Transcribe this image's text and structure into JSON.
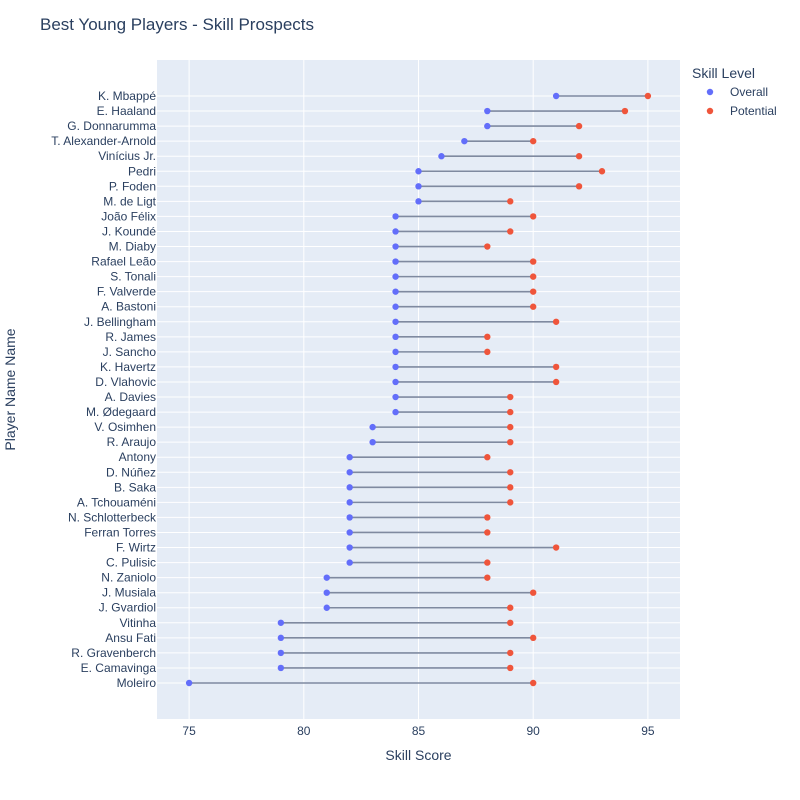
{
  "chart_data": {
    "type": "dumbbell",
    "title": "Best Young Players - Skill Prospects",
    "xlabel": "Skill Score",
    "ylabel": "Player Name Name",
    "xlim": [
      73.6,
      96.4
    ],
    "xticks": [
      75,
      80,
      85,
      90,
      95
    ],
    "grid": true,
    "legend": {
      "title": "Skill Level",
      "position": "top-right",
      "items": [
        {
          "name": "Overall",
          "color": "#636efa"
        },
        {
          "name": "Potential",
          "color": "#ef553b"
        }
      ]
    },
    "colors": {
      "plot_bg": "#e5ecf6",
      "gridline": "#ffffff",
      "connector": "#7f8aa0",
      "text": "#2a3f5f"
    },
    "players": [
      {
        "name": "K. Mbappé",
        "overall": 91,
        "potential": 95
      },
      {
        "name": "E. Haaland",
        "overall": 88,
        "potential": 94
      },
      {
        "name": "G. Donnarumma",
        "overall": 88,
        "potential": 92
      },
      {
        "name": "T. Alexander-Arnold",
        "overall": 87,
        "potential": 90
      },
      {
        "name": "Vinícius Jr.",
        "overall": 86,
        "potential": 92
      },
      {
        "name": "Pedri",
        "overall": 85,
        "potential": 93
      },
      {
        "name": "P. Foden",
        "overall": 85,
        "potential": 92
      },
      {
        "name": "M. de Ligt",
        "overall": 85,
        "potential": 89
      },
      {
        "name": "João Félix",
        "overall": 84,
        "potential": 90
      },
      {
        "name": "J. Koundé",
        "overall": 84,
        "potential": 89
      },
      {
        "name": "M. Diaby",
        "overall": 84,
        "potential": 88
      },
      {
        "name": "Rafael Leão",
        "overall": 84,
        "potential": 90
      },
      {
        "name": "S. Tonali",
        "overall": 84,
        "potential": 90
      },
      {
        "name": "F. Valverde",
        "overall": 84,
        "potential": 90
      },
      {
        "name": "A. Bastoni",
        "overall": 84,
        "potential": 90
      },
      {
        "name": "J. Bellingham",
        "overall": 84,
        "potential": 91
      },
      {
        "name": "R. James",
        "overall": 84,
        "potential": 88
      },
      {
        "name": "J. Sancho",
        "overall": 84,
        "potential": 88
      },
      {
        "name": "K. Havertz",
        "overall": 84,
        "potential": 91
      },
      {
        "name": "D. Vlahovic",
        "overall": 84,
        "potential": 91
      },
      {
        "name": "A. Davies",
        "overall": 84,
        "potential": 89
      },
      {
        "name": "M. Ødegaard",
        "overall": 84,
        "potential": 89
      },
      {
        "name": "V. Osimhen",
        "overall": 83,
        "potential": 89
      },
      {
        "name": "R. Araujo",
        "overall": 83,
        "potential": 89
      },
      {
        "name": "Antony",
        "overall": 82,
        "potential": 88
      },
      {
        "name": "D. Núñez",
        "overall": 82,
        "potential": 89
      },
      {
        "name": "B. Saka",
        "overall": 82,
        "potential": 89
      },
      {
        "name": "A. Tchouaméni",
        "overall": 82,
        "potential": 89
      },
      {
        "name": "N. Schlotterbeck",
        "overall": 82,
        "potential": 88
      },
      {
        "name": "Ferran Torres",
        "overall": 82,
        "potential": 88
      },
      {
        "name": "F. Wirtz",
        "overall": 82,
        "potential": 91
      },
      {
        "name": "C. Pulisic",
        "overall": 82,
        "potential": 88
      },
      {
        "name": "N. Zaniolo",
        "overall": 81,
        "potential": 88
      },
      {
        "name": "J. Musiala",
        "overall": 81,
        "potential": 90
      },
      {
        "name": "J. Gvardiol",
        "overall": 81,
        "potential": 89
      },
      {
        "name": "Vitinha",
        "overall": 79,
        "potential": 89
      },
      {
        "name": "Ansu Fati",
        "overall": 79,
        "potential": 90
      },
      {
        "name": "R. Gravenberch",
        "overall": 79,
        "potential": 89
      },
      {
        "name": "E. Camavinga",
        "overall": 79,
        "potential": 89
      },
      {
        "name": "Moleiro",
        "overall": 75,
        "potential": 90
      }
    ]
  }
}
